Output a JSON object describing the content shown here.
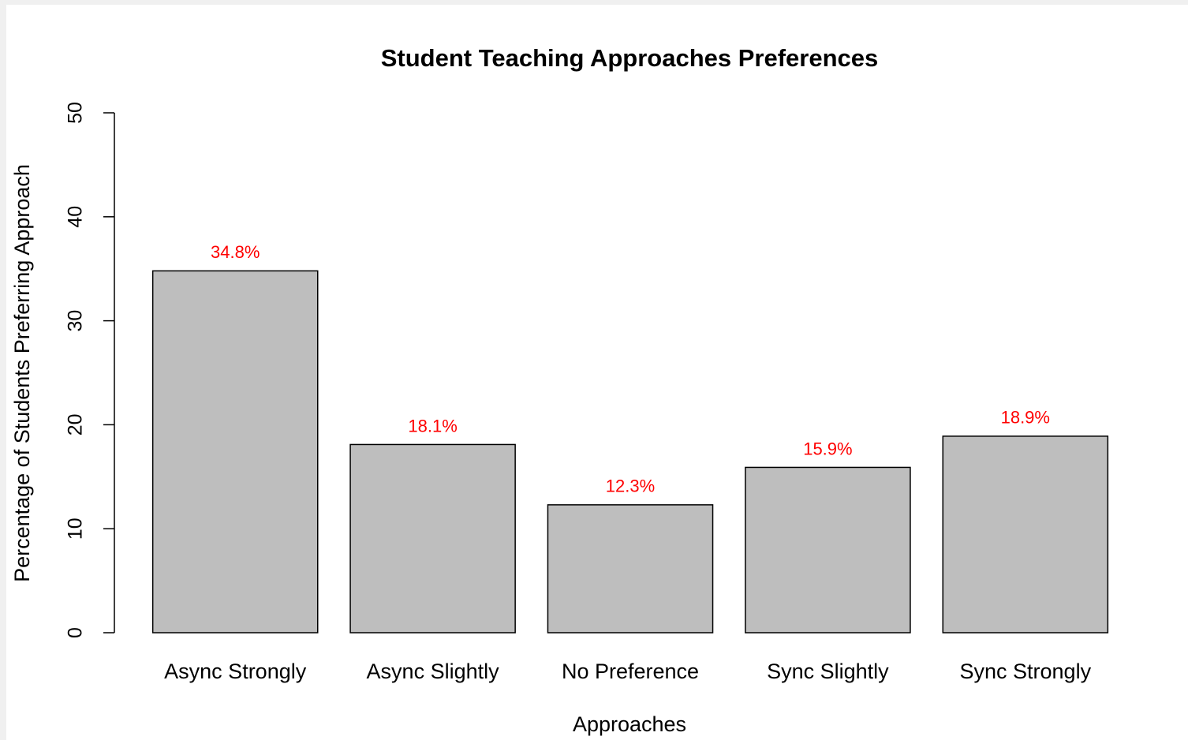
{
  "chart_data": {
    "type": "bar",
    "title": "Student Teaching Approaches Preferences",
    "x_label": "Approaches",
    "y_label": "Percentage of Students Preferring Approach",
    "categories": [
      "Async Strongly",
      "Async Slightly",
      "No Preference",
      "Sync Slightly",
      "Sync Strongly"
    ],
    "values": [
      34.8,
      18.1,
      12.3,
      15.9,
      18.9
    ],
    "value_labels": [
      "34.8%",
      "18.1%",
      "12.3%",
      "15.9%",
      "18.9%"
    ],
    "color": "#bebebe",
    "label_color": "#ff0000",
    "ylim": [
      0,
      50
    ],
    "yticks": [
      0,
      10,
      20,
      30,
      40,
      50
    ],
    "grid": false
  }
}
